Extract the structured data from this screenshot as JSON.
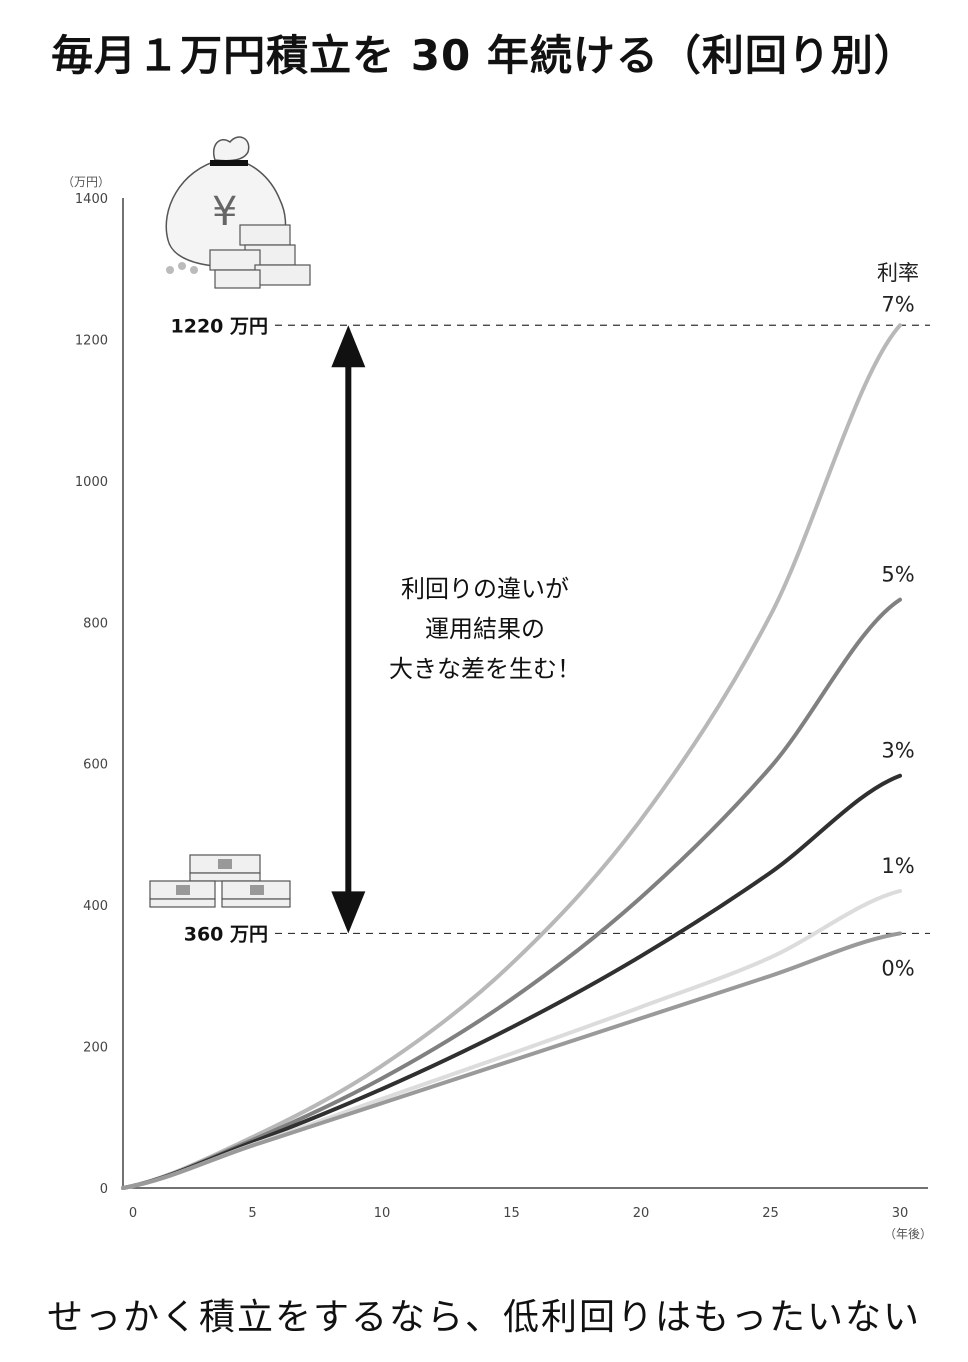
{
  "title": "毎月１万円積立を 30 年続ける（利回り別）",
  "footer": "せっかく積立をするなら、低利回りはもったいない",
  "chart_data": {
    "type": "line",
    "title": "毎月１万円積立を 30 年続ける（利回り別）",
    "y_unit_label": "（万円）",
    "x_unit_label": "（年後）",
    "xlim": [
      0,
      30
    ],
    "ylim": [
      0,
      1400
    ],
    "x_ticks": [
      0,
      5,
      10,
      15,
      20,
      25,
      30
    ],
    "y_ticks": [
      0,
      200,
      400,
      600,
      800,
      1000,
      1200,
      1400
    ],
    "grid": false,
    "x": [
      0,
      5,
      10,
      15,
      20,
      25,
      30
    ],
    "series_label_prefix": "利率",
    "series": [
      {
        "name": "7%",
        "color": "#b8b8b8",
        "values": [
          0,
          72,
          173,
          317,
          521,
          810,
          1220
        ]
      },
      {
        "name": "5%",
        "color": "#808080",
        "values": [
          0,
          68,
          155,
          267,
          411,
          595,
          832
        ]
      },
      {
        "name": "3%",
        "color": "#303030",
        "values": [
          0,
          65,
          140,
          227,
          328,
          446,
          583
        ]
      },
      {
        "name": "1%",
        "color": "#dcdcdc",
        "values": [
          0,
          61,
          126,
          190,
          256,
          326,
          420
        ]
      },
      {
        "name": "0%",
        "color": "#9a9a9a",
        "values": [
          0,
          60,
          120,
          180,
          240,
          300,
          360
        ]
      }
    ],
    "reference_lines": [
      {
        "label": "1220 万円",
        "value": 1220
      },
      {
        "label": "360 万円",
        "value": 360
      }
    ],
    "annotation": {
      "lines": [
        "利回りの違いが",
        "運用結果の",
        "大きな差を生む！"
      ],
      "arrow_x": 8.7
    }
  },
  "icons": {
    "top": "money-bag-with-bill-stacks-icon",
    "bottom": "bill-stacks-icon"
  },
  "colors": {
    "axis": "#444444",
    "reference_line": "#333333",
    "arrow": "#111111"
  }
}
